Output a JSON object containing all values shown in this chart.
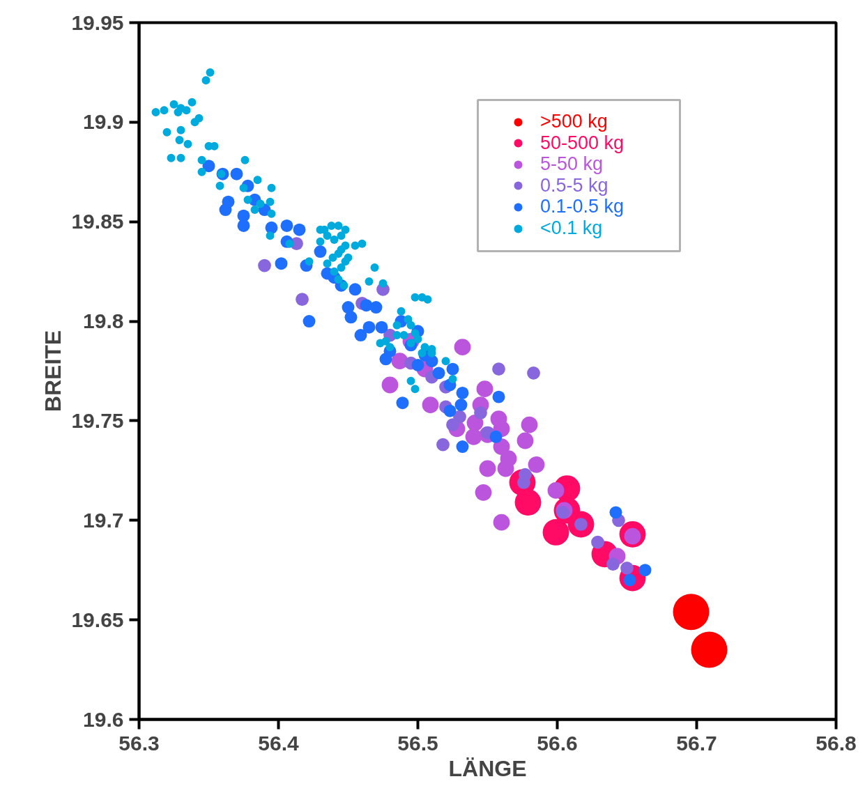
{
  "chart_data": {
    "type": "bubble",
    "xlabel": "LÄNGE",
    "ylabel": "BREITE",
    "xlim": [
      56.3,
      56.8
    ],
    "ylim": [
      19.6,
      19.95
    ],
    "xticks": [
      56.3,
      56.4,
      56.5,
      56.6,
      56.7,
      56.8
    ],
    "yticks": [
      19.6,
      19.65,
      19.7,
      19.75,
      19.8,
      19.85,
      19.9,
      19.95
    ],
    "grid": false,
    "legend": "top right",
    "marker": "circle",
    "series": [
      {
        "name": ">500 kg",
        "color": "#ff0000",
        "x": [
          56.696,
          56.709
        ],
        "values": [
          19.654,
          19.635
        ],
        "sizes": [
          1,
          1
        ]
      },
      {
        "name": "50-500 kg",
        "color": "#ff0a64",
        "x": [
          56.579,
          56.575,
          56.607,
          56.599,
          56.617,
          56.607,
          56.654,
          56.634,
          56.654
        ],
        "values": [
          19.709,
          19.719,
          19.716,
          19.694,
          19.698,
          19.705,
          19.693,
          19.683,
          19.671
        ],
        "sizes": [
          0.53,
          0.53,
          0.53,
          0.53,
          0.53,
          0.53,
          0.53,
          0.53,
          0.53
        ]
      },
      {
        "name": "5-50 kg",
        "color": "#bb55dd",
        "x": [
          56.532,
          56.48,
          56.548,
          56.509,
          56.545,
          56.58,
          56.577,
          56.541,
          56.55,
          56.56,
          56.563,
          56.55,
          56.585,
          56.547,
          56.56,
          56.599,
          56.605,
          56.654,
          56.643,
          56.558,
          56.54,
          56.528,
          56.487,
          56.56,
          56.565,
          56.505,
          56.495
        ],
        "values": [
          19.787,
          19.768,
          19.766,
          19.758,
          19.758,
          19.748,
          19.74,
          19.749,
          19.743,
          19.737,
          19.726,
          19.726,
          19.728,
          19.714,
          19.699,
          19.715,
          19.705,
          19.692,
          19.682,
          19.751,
          19.742,
          19.746,
          19.78,
          19.746,
          19.731,
          19.776,
          19.79
        ],
        "sizes": [
          0.21,
          0.21,
          0.21,
          0.21,
          0.21,
          0.21,
          0.21,
          0.21,
          0.21,
          0.21,
          0.21,
          0.21,
          0.21,
          0.21,
          0.21,
          0.21,
          0.21,
          0.21,
          0.21,
          0.21,
          0.21,
          0.21,
          0.21,
          0.21,
          0.21,
          0.21,
          0.21
        ]
      },
      {
        "name": "0.5-5 kg",
        "color": "#8866dd",
        "x": [
          56.39,
          56.417,
          56.475,
          56.558,
          56.583,
          56.518,
          56.53,
          56.525,
          56.55,
          56.545,
          56.52,
          56.629,
          56.64,
          56.644,
          56.617,
          56.577,
          56.576,
          56.604,
          56.413,
          56.46,
          56.48,
          56.495,
          56.51,
          56.52,
          56.65
        ],
        "values": [
          19.828,
          19.811,
          19.816,
          19.776,
          19.774,
          19.738,
          19.752,
          19.748,
          19.744,
          19.754,
          19.757,
          19.689,
          19.678,
          19.7,
          19.698,
          19.723,
          19.719,
          19.704,
          19.839,
          19.809,
          19.793,
          19.779,
          19.772,
          19.767,
          19.676
        ],
        "sizes": [
          0.13,
          0.13,
          0.13,
          0.13,
          0.13,
          0.13,
          0.13,
          0.13,
          0.13,
          0.13,
          0.13,
          0.13,
          0.13,
          0.13,
          0.13,
          0.13,
          0.13,
          0.13,
          0.13,
          0.13,
          0.13,
          0.13,
          0.13,
          0.13,
          0.13
        ]
      },
      {
        "name": "0.1-0.5 kg",
        "color": "#1f6fff",
        "x": [
          56.35,
          56.36,
          56.37,
          56.364,
          56.362,
          56.375,
          56.375,
          56.39,
          56.395,
          56.406,
          56.402,
          56.406,
          56.42,
          56.422,
          56.43,
          56.44,
          56.445,
          56.455,
          56.45,
          56.452,
          56.459,
          56.463,
          56.47,
          56.474,
          56.477,
          56.489,
          56.48,
          56.495,
          56.505,
          56.5,
          56.51,
          56.515,
          56.525,
          56.523,
          56.532,
          56.531,
          56.523,
          56.532,
          56.558,
          56.556,
          56.652,
          56.663,
          56.642,
          56.5,
          56.488,
          56.465,
          56.435,
          56.415,
          56.378,
          56.383
        ],
        "values": [
          19.878,
          19.874,
          19.874,
          19.86,
          19.856,
          19.853,
          19.848,
          19.856,
          19.847,
          19.848,
          19.829,
          19.84,
          19.828,
          19.8,
          19.835,
          19.822,
          19.818,
          19.816,
          19.807,
          19.802,
          19.793,
          19.808,
          19.807,
          19.797,
          19.781,
          19.759,
          19.785,
          19.788,
          19.783,
          19.778,
          19.78,
          19.774,
          19.776,
          19.768,
          19.764,
          19.758,
          19.755,
          19.737,
          19.762,
          19.742,
          19.67,
          19.675,
          19.704,
          19.795,
          19.8,
          19.797,
          19.824,
          19.846,
          19.868,
          19.861
        ],
        "sizes": [
          0.12,
          0.12,
          0.12,
          0.12,
          0.12,
          0.12,
          0.12,
          0.12,
          0.12,
          0.12,
          0.12,
          0.12,
          0.12,
          0.12,
          0.12,
          0.12,
          0.12,
          0.12,
          0.12,
          0.12,
          0.12,
          0.12,
          0.12,
          0.12,
          0.12,
          0.12,
          0.12,
          0.12,
          0.12,
          0.12,
          0.12,
          0.12,
          0.12,
          0.12,
          0.12,
          0.12,
          0.12,
          0.12,
          0.12,
          0.12,
          0.12,
          0.12,
          0.12,
          0.12,
          0.12,
          0.12,
          0.12,
          0.12,
          0.12,
          0.12
        ]
      },
      {
        "name": "<0.1 kg",
        "color": "#00aadd",
        "x": [
          56.351,
          56.348,
          56.338,
          56.312,
          56.318,
          56.325,
          56.328,
          56.33,
          56.334,
          56.34,
          56.343,
          56.32,
          56.33,
          56.329,
          56.323,
          56.33,
          56.35,
          56.354,
          56.335,
          56.345,
          56.376,
          56.359,
          56.345,
          56.358,
          56.375,
          56.385,
          56.395,
          56.387,
          56.394,
          56.395,
          56.383,
          56.378,
          56.394,
          56.408,
          56.422,
          56.43,
          56.433,
          56.438,
          56.443,
          56.448,
          56.435,
          56.44,
          56.445,
          56.43,
          56.435,
          56.439,
          56.443,
          56.445,
          56.448,
          56.44,
          56.445,
          56.448,
          56.45,
          56.443,
          56.447,
          56.455,
          56.46,
          56.469,
          56.465,
          56.475,
          56.473,
          56.477,
          56.488,
          56.493,
          56.485,
          56.495,
          56.498,
          56.49,
          56.5,
          56.495,
          56.505,
          56.51,
          56.503,
          56.485,
          56.48,
          56.498,
          56.503,
          56.507,
          56.498,
          56.495,
          56.51,
          56.525,
          56.52
        ],
        "values": [
          19.925,
          19.921,
          19.91,
          19.905,
          19.906,
          19.909,
          19.905,
          19.907,
          19.906,
          19.9,
          19.902,
          19.895,
          19.896,
          19.891,
          19.882,
          19.882,
          19.888,
          19.888,
          19.889,
          19.881,
          19.881,
          19.874,
          19.875,
          19.868,
          19.867,
          19.871,
          19.867,
          19.859,
          19.86,
          19.854,
          19.856,
          19.861,
          19.843,
          19.839,
          19.83,
          19.846,
          19.846,
          19.848,
          19.848,
          19.846,
          19.843,
          19.841,
          19.843,
          19.84,
          19.829,
          19.832,
          19.834,
          19.836,
          19.838,
          19.825,
          19.827,
          19.83,
          19.832,
          19.821,
          19.818,
          19.838,
          19.839,
          19.827,
          19.82,
          19.819,
          19.789,
          19.79,
          19.805,
          19.801,
          19.798,
          19.798,
          19.794,
          19.793,
          19.791,
          19.789,
          19.787,
          19.784,
          19.784,
          19.793,
          19.787,
          19.812,
          19.812,
          19.811,
          19.766,
          19.77,
          19.786,
          19.771,
          19.78
        ],
        "sizes": [
          0.053,
          0.053,
          0.053,
          0.053,
          0.053,
          0.053,
          0.053,
          0.053,
          0.053,
          0.053,
          0.053,
          0.053,
          0.053,
          0.053,
          0.053,
          0.053,
          0.053,
          0.053,
          0.053,
          0.053,
          0.053,
          0.053,
          0.053,
          0.053,
          0.053,
          0.053,
          0.053,
          0.053,
          0.053,
          0.053,
          0.053,
          0.053,
          0.053,
          0.053,
          0.053,
          0.053,
          0.053,
          0.053,
          0.053,
          0.053,
          0.053,
          0.053,
          0.053,
          0.053,
          0.053,
          0.053,
          0.053,
          0.053,
          0.053,
          0.053,
          0.053,
          0.053,
          0.053,
          0.053,
          0.053,
          0.053,
          0.053,
          0.053,
          0.053,
          0.053,
          0.053,
          0.053,
          0.053,
          0.053,
          0.053,
          0.053,
          0.053,
          0.053,
          0.053,
          0.053,
          0.053,
          0.053,
          0.053,
          0.053,
          0.053,
          0.053,
          0.053,
          0.053,
          0.053,
          0.053,
          0.053,
          0.053,
          0.053
        ]
      }
    ]
  }
}
